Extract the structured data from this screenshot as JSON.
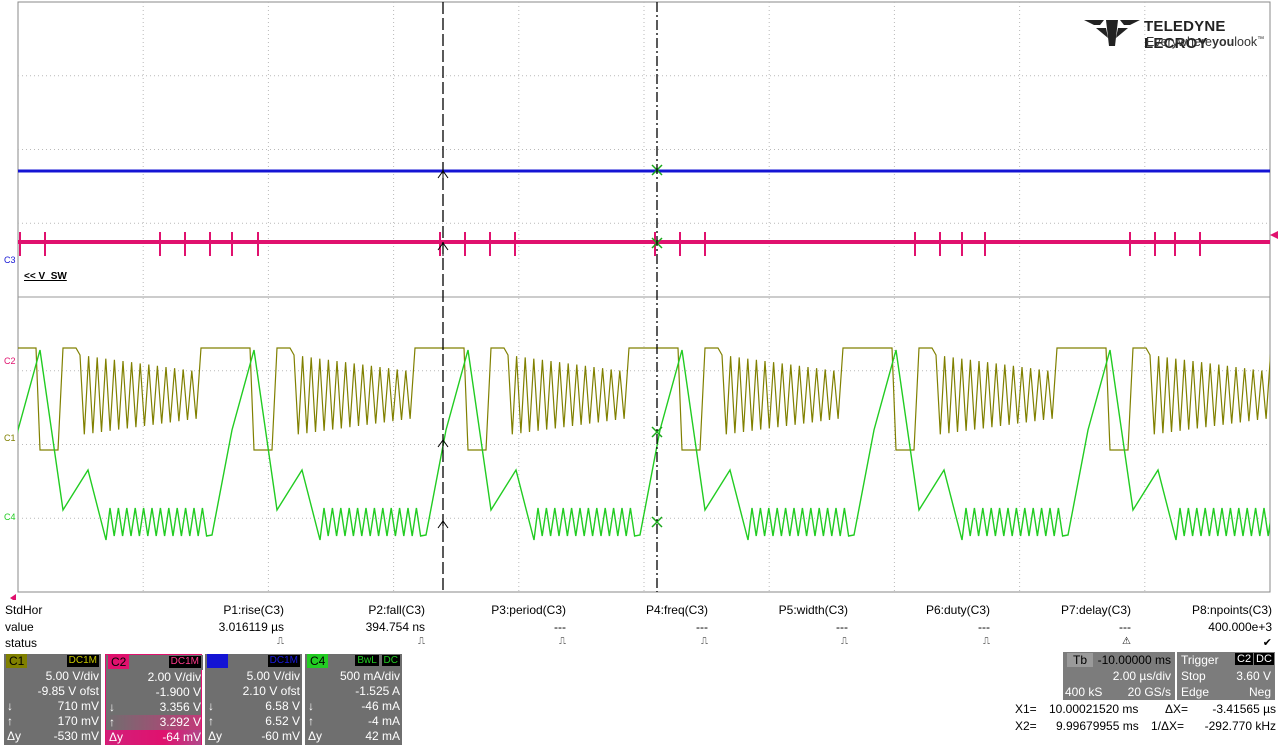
{
  "brand": {
    "name": "TELEDYNE LECROY",
    "tagline_a": "Everywhere",
    "tagline_b": "you",
    "tagline_c": "look"
  },
  "trace_markers": {
    "c3": "C3",
    "c2": "C2",
    "c1": "C1",
    "c4": "C4"
  },
  "trace_name": "<< V_SW",
  "colors": {
    "c1": "#808000",
    "c2": "#e0116e",
    "c3": "#1414d4",
    "c4": "#22cc22",
    "grid": "#b9b9b9"
  },
  "params": {
    "row_headers": {
      "header": "StdHor",
      "value": "value",
      "status": "status"
    },
    "columns": [
      {
        "name": "P1:rise(C3)",
        "value": "3.016119 µs",
        "status": "⎍"
      },
      {
        "name": "P2:fall(C3)",
        "value": "394.754 ns",
        "status": "⎍"
      },
      {
        "name": "P3:period(C3)",
        "value": "---",
        "status": "⎍"
      },
      {
        "name": "P4:freq(C3)",
        "value": "---",
        "status": "⎍"
      },
      {
        "name": "P5:width(C3)",
        "value": "---",
        "status": "⎍"
      },
      {
        "name": "P6:duty(C3)",
        "value": "---",
        "status": "⎍"
      },
      {
        "name": "P7:delay(C3)",
        "value": "---",
        "status": "⚠"
      },
      {
        "name": "P8:npoints(C3)",
        "value": "400.000e+3",
        "status": "✔"
      }
    ]
  },
  "channels": [
    {
      "id": "C1",
      "coupling": "DC1M",
      "scale": "5.00 V/div",
      "offset": "-9.85 V ofst",
      "max": "710 mV",
      "min": "170 mV",
      "dy": "-530 mV",
      "color": "#808000"
    },
    {
      "id": "C2",
      "coupling": "DC1M",
      "scale": "2.00 V/div",
      "offset": "-1.900 V",
      "max": "3.356 V",
      "min": "3.292 V",
      "dy": "-64 mV",
      "color": "#e0116e"
    },
    {
      "id": "C3",
      "coupling": "DC1M",
      "scale": "5.00 V/div",
      "offset": "2.10 V ofst",
      "max": "6.58 V",
      "min": "6.52 V",
      "dy": "-60 mV",
      "color": "#1414d4"
    },
    {
      "id": "C4",
      "coupling_a": "BwL",
      "coupling_b": "DC",
      "scale": "500 mA/div",
      "offset": "-1.525 A",
      "max": "-46 mA",
      "min": "-4 mA",
      "dy": "42 mA",
      "color": "#22cc22"
    }
  ],
  "symbols": {
    "down": "↓",
    "up": "↑",
    "delta": "Δy"
  },
  "timebase": {
    "label": "Tb",
    "delay": "-10.00000 ms",
    "scale": "2.00 µs/div",
    "samples": "400 kS",
    "rate": "20 GS/s"
  },
  "trigger": {
    "label": "Trigger",
    "source": "C2",
    "coupling": "DC",
    "mode": "Stop",
    "level": "3.60 V",
    "type": "Edge",
    "slope": "Neg"
  },
  "cursors": {
    "x1_label": "X1=",
    "x1": "10.00021520 ms",
    "dx_label": "ΔX=",
    "dx": "-3.41565 µs",
    "x2_label": "X2=",
    "x2": "9.99679955 ms",
    "inv_label": "1/ΔX=",
    "inv": "-292.770 kHz"
  }
}
